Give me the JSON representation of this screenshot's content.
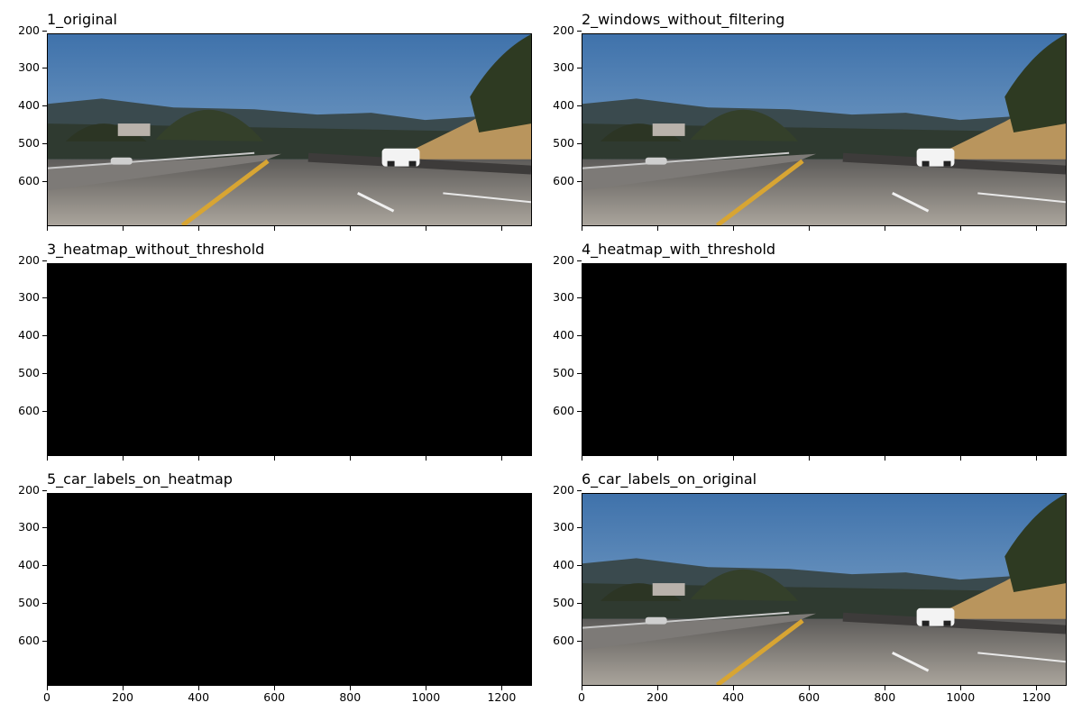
{
  "figure": {
    "panels": [
      {
        "title": "1_original",
        "kind": "photo",
        "show_xticks": false
      },
      {
        "title": "2_windows_without_filtering",
        "kind": "photo",
        "show_xticks": false
      },
      {
        "title": "3_heatmap_without_threshold",
        "kind": "black",
        "show_xticks": false
      },
      {
        "title": "4_heatmap_with_threshold",
        "kind": "black",
        "show_xticks": false
      },
      {
        "title": "5_car_labels_on_heatmap",
        "kind": "black",
        "show_xticks": true
      },
      {
        "title": "6_car_labels_on_original",
        "kind": "photo",
        "show_xticks": true
      }
    ],
    "y_ticks": [
      "200",
      "300",
      "400",
      "500",
      "600"
    ],
    "x_ticks": [
      "0",
      "200",
      "400",
      "600",
      "800",
      "1000",
      "1200"
    ]
  },
  "chart_data": {
    "type": "heatmap",
    "panel_count": 6,
    "image_extent": {
      "x": [
        0,
        1280
      ],
      "y": [
        720,
        208
      ]
    },
    "y_tick_values": [
      200,
      300,
      400,
      500,
      600
    ],
    "x_tick_values": [
      0,
      200,
      400,
      600,
      800,
      1000,
      1200
    ],
    "heatmap_panels_all_zero": true,
    "colors": {
      "sky": "#4a7bb0",
      "road": "#a7a19a",
      "heatmap": "#000000"
    }
  }
}
